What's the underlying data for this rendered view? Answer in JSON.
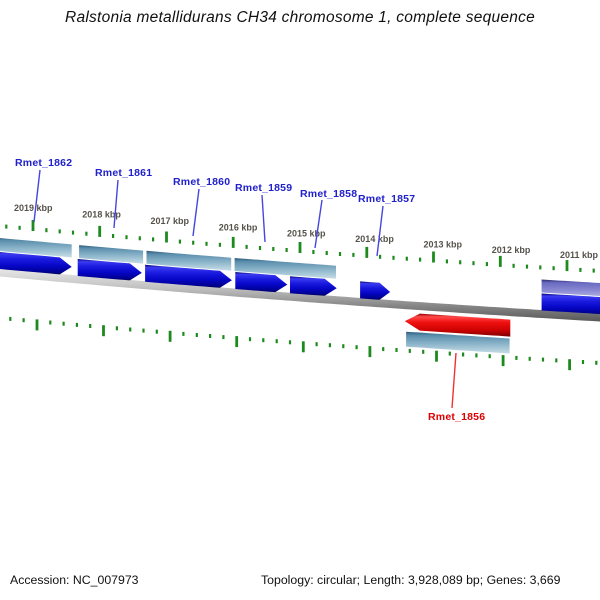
{
  "title": "Ralstonia metallidurans CH34 chromosome 1, complete sequence",
  "footer": {
    "accession": "Accession: NC_007973",
    "summary": "Topology: circular; Length: 3,928,089 bp; Genes: 3,669"
  },
  "colors": {
    "gene_blue": "#0d0dd8",
    "gene_steel": "#7aa6c2",
    "gene_purple": "#7878cc",
    "gene_red": "#e80000",
    "backbone_gray": "#9a9a9a",
    "tick_green": "#1d8a1d",
    "label_blue": "#2020cc",
    "label_red": "#dd0000",
    "leader_blue": "#4646dd",
    "leader_red": "#ee3333",
    "kbp_label": "#55524a"
  },
  "chart_data": {
    "type": "genome_track_map",
    "topology": "circular",
    "sequence_title": "Ralstonia metallidurans CH34 chromosome 1, complete sequence",
    "direction_of_decreasing_kbp": "right",
    "ruler": {
      "units": "kbp",
      "visible_range_kbp": [
        2010.4,
        2019.55
      ],
      "major_tick_interval_kbp": 1,
      "minor_tick_interval_kbp": 0.2,
      "major_ticks": [
        {
          "kbp": 2019,
          "label": "2019 kbp"
        },
        {
          "kbp": 2018,
          "label": "2018 kbp"
        },
        {
          "kbp": 2017,
          "label": "2017 kbp"
        },
        {
          "kbp": 2016,
          "label": "2016 kbp"
        },
        {
          "kbp": 2015,
          "label": "2015 kbp"
        },
        {
          "kbp": 2014,
          "label": "2014 kbp"
        },
        {
          "kbp": 2013,
          "label": "2013 kbp"
        },
        {
          "kbp": 2012,
          "label": "2012 kbp"
        },
        {
          "kbp": 2011,
          "label": "2011 kbp"
        }
      ]
    },
    "genes": [
      {
        "name": "Rmet_1862",
        "span_kbp": [
          2019.65,
          2018.42
        ],
        "track": "upper-inner",
        "direction": "right",
        "color": "blue"
      },
      {
        "name": "Rmet_1861",
        "span_kbp": [
          2018.33,
          2017.37
        ],
        "track": "upper-inner",
        "direction": "right",
        "color": "blue"
      },
      {
        "name": "Rmet_1860",
        "span_kbp": [
          2017.32,
          2016.02
        ],
        "track": "upper-inner",
        "direction": "right",
        "color": "blue"
      },
      {
        "name": "Rmet_1859",
        "span_kbp": [
          2015.97,
          2015.19
        ],
        "track": "upper-inner",
        "direction": "right",
        "color": "blue"
      },
      {
        "name": "Rmet_1858",
        "span_kbp": [
          2015.15,
          2014.45
        ],
        "track": "upper-inner",
        "direction": "right",
        "color": "blue"
      },
      {
        "name": "Rmet_1857",
        "span_kbp": [
          2014.1,
          2013.65
        ],
        "track": "upper-inner",
        "direction": "right",
        "color": "blue"
      },
      {
        "name": "Rmet_1856",
        "span_kbp": [
          2013.43,
          2011.85
        ],
        "track": "lower-inner",
        "direction": "left",
        "color": "red"
      }
    ],
    "unlabeled_features": [
      {
        "span_kbp": [
          2019.65,
          2018.42
        ],
        "track": "upper-outer",
        "color": "steel"
      },
      {
        "span_kbp": [
          2018.31,
          2017.35
        ],
        "track": "upper-outer",
        "color": "steel"
      },
      {
        "span_kbp": [
          2017.3,
          2016.03
        ],
        "track": "upper-outer",
        "color": "steel"
      },
      {
        "span_kbp": [
          2015.98,
          2014.46
        ],
        "track": "upper-outer",
        "color": "steel"
      },
      {
        "span_kbp": [
          2013.41,
          2011.86
        ],
        "track": "lower-outer",
        "color": "steel"
      },
      {
        "span_kbp": [
          2011.38,
          2010.15
        ],
        "track": "upper-outer",
        "color": "purple"
      },
      {
        "span_kbp": [
          2011.38,
          2010.15
        ],
        "track": "upper-inner",
        "color": "blue"
      }
    ]
  }
}
